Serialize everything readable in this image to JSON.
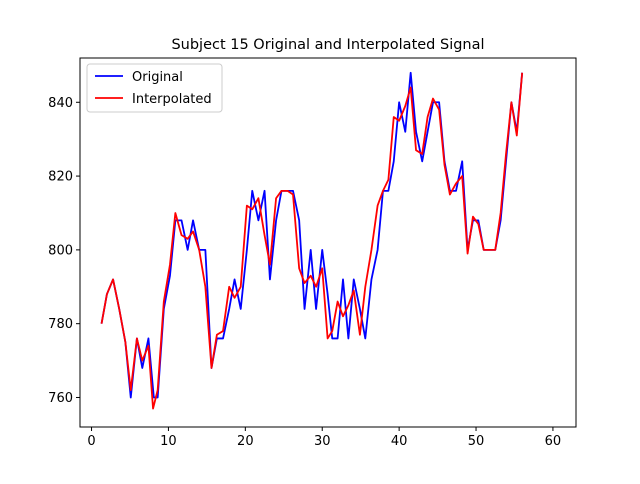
{
  "chart_data": {
    "type": "line",
    "title": "Subject 15 Original and Interpolated Signal",
    "xlabel": "",
    "ylabel": "",
    "xlim": [
      -1.5,
      63
    ],
    "ylim": [
      752,
      852
    ],
    "xticks": [
      0,
      10,
      20,
      30,
      40,
      50,
      60
    ],
    "yticks": [
      760,
      780,
      800,
      820,
      840
    ],
    "grid": false,
    "legend": "top-left",
    "series": [
      {
        "name": "Original",
        "color": "#0000ff",
        "points": [
          [
            1.3,
            780
          ],
          [
            2.0,
            788
          ],
          [
            2.8,
            792
          ],
          [
            3.6,
            784
          ],
          [
            4.4,
            775
          ],
          [
            5.1,
            760
          ],
          [
            5.9,
            776
          ],
          [
            6.6,
            768
          ],
          [
            7.4,
            776
          ],
          [
            8.1,
            760
          ],
          [
            8.6,
            760
          ],
          [
            9.4,
            784
          ],
          [
            10.2,
            793
          ],
          [
            10.9,
            808
          ],
          [
            11.7,
            808
          ],
          [
            12.5,
            800
          ],
          [
            13.2,
            808
          ],
          [
            14.0,
            800
          ],
          [
            14.8,
            800
          ],
          [
            15.6,
            768
          ],
          [
            16.3,
            776
          ],
          [
            17.1,
            776
          ],
          [
            17.9,
            784
          ],
          [
            18.6,
            792
          ],
          [
            19.4,
            784
          ],
          [
            20.2,
            800
          ],
          [
            20.9,
            816
          ],
          [
            21.7,
            808
          ],
          [
            22.5,
            816
          ],
          [
            23.2,
            792
          ],
          [
            24.0,
            808
          ],
          [
            24.7,
            816
          ],
          [
            25.5,
            816
          ],
          [
            26.2,
            816
          ],
          [
            27.0,
            808
          ],
          [
            27.7,
            784
          ],
          [
            28.5,
            800
          ],
          [
            29.2,
            784
          ],
          [
            30.0,
            800
          ],
          [
            30.7,
            788
          ],
          [
            31.3,
            776
          ],
          [
            32.0,
            776
          ],
          [
            32.7,
            792
          ],
          [
            33.4,
            776
          ],
          [
            34.1,
            792
          ],
          [
            34.9,
            784
          ],
          [
            35.6,
            776
          ],
          [
            36.4,
            792
          ],
          [
            37.2,
            800
          ],
          [
            37.9,
            816
          ],
          [
            38.6,
            816
          ],
          [
            39.3,
            824
          ],
          [
            40.0,
            840
          ],
          [
            40.8,
            832
          ],
          [
            41.5,
            848
          ],
          [
            42.2,
            832
          ],
          [
            43.0,
            824
          ],
          [
            43.7,
            832
          ],
          [
            44.4,
            840
          ],
          [
            45.2,
            840
          ],
          [
            45.9,
            824
          ],
          [
            46.6,
            816
          ],
          [
            47.4,
            816
          ],
          [
            48.2,
            824
          ],
          [
            48.9,
            800
          ],
          [
            49.6,
            808
          ],
          [
            50.3,
            808
          ],
          [
            51.0,
            800
          ],
          [
            51.7,
            800
          ],
          [
            52.5,
            800
          ],
          [
            53.2,
            808
          ],
          [
            53.9,
            824
          ],
          [
            54.6,
            840
          ],
          [
            55.3,
            832
          ],
          [
            56.0,
            848
          ]
        ]
      },
      {
        "name": "Interpolated",
        "color": "#ff0000",
        "points": [
          [
            1.3,
            780
          ],
          [
            2.0,
            788
          ],
          [
            2.8,
            792
          ],
          [
            3.6,
            784
          ],
          [
            4.4,
            775
          ],
          [
            5.1,
            762
          ],
          [
            5.9,
            776
          ],
          [
            6.6,
            770
          ],
          [
            7.4,
            774
          ],
          [
            8.0,
            757
          ],
          [
            8.6,
            762
          ],
          [
            9.4,
            786
          ],
          [
            10.2,
            796
          ],
          [
            10.9,
            810
          ],
          [
            11.7,
            804
          ],
          [
            12.5,
            803
          ],
          [
            13.2,
            805
          ],
          [
            14.0,
            800
          ],
          [
            14.8,
            790
          ],
          [
            15.6,
            768
          ],
          [
            16.3,
            777
          ],
          [
            17.1,
            778
          ],
          [
            17.9,
            790
          ],
          [
            18.6,
            787
          ],
          [
            19.4,
            790
          ],
          [
            20.2,
            812
          ],
          [
            20.9,
            811
          ],
          [
            21.7,
            814
          ],
          [
            22.5,
            804
          ],
          [
            23.2,
            796
          ],
          [
            24.0,
            814
          ],
          [
            24.7,
            816
          ],
          [
            25.5,
            816
          ],
          [
            26.2,
            815
          ],
          [
            27.0,
            795
          ],
          [
            27.7,
            791
          ],
          [
            28.5,
            793
          ],
          [
            29.2,
            790
          ],
          [
            30.0,
            795
          ],
          [
            30.7,
            776
          ],
          [
            31.3,
            778
          ],
          [
            32.0,
            786
          ],
          [
            32.7,
            782
          ],
          [
            33.4,
            785
          ],
          [
            34.1,
            789
          ],
          [
            34.9,
            777
          ],
          [
            35.6,
            790
          ],
          [
            36.4,
            800
          ],
          [
            37.2,
            812
          ],
          [
            37.9,
            816
          ],
          [
            38.6,
            819
          ],
          [
            39.3,
            836
          ],
          [
            40.0,
            835
          ],
          [
            40.8,
            839
          ],
          [
            41.5,
            844
          ],
          [
            42.2,
            827
          ],
          [
            43.0,
            826
          ],
          [
            43.7,
            836
          ],
          [
            44.4,
            841
          ],
          [
            45.2,
            838
          ],
          [
            45.9,
            823
          ],
          [
            46.6,
            815
          ],
          [
            47.4,
            818
          ],
          [
            48.2,
            820
          ],
          [
            48.9,
            799
          ],
          [
            49.6,
            809
          ],
          [
            50.3,
            807
          ],
          [
            51.0,
            800
          ],
          [
            51.7,
            800
          ],
          [
            52.5,
            800
          ],
          [
            53.2,
            810
          ],
          [
            53.9,
            826
          ],
          [
            54.6,
            840
          ],
          [
            55.3,
            831
          ],
          [
            56.0,
            848
          ]
        ]
      }
    ]
  }
}
